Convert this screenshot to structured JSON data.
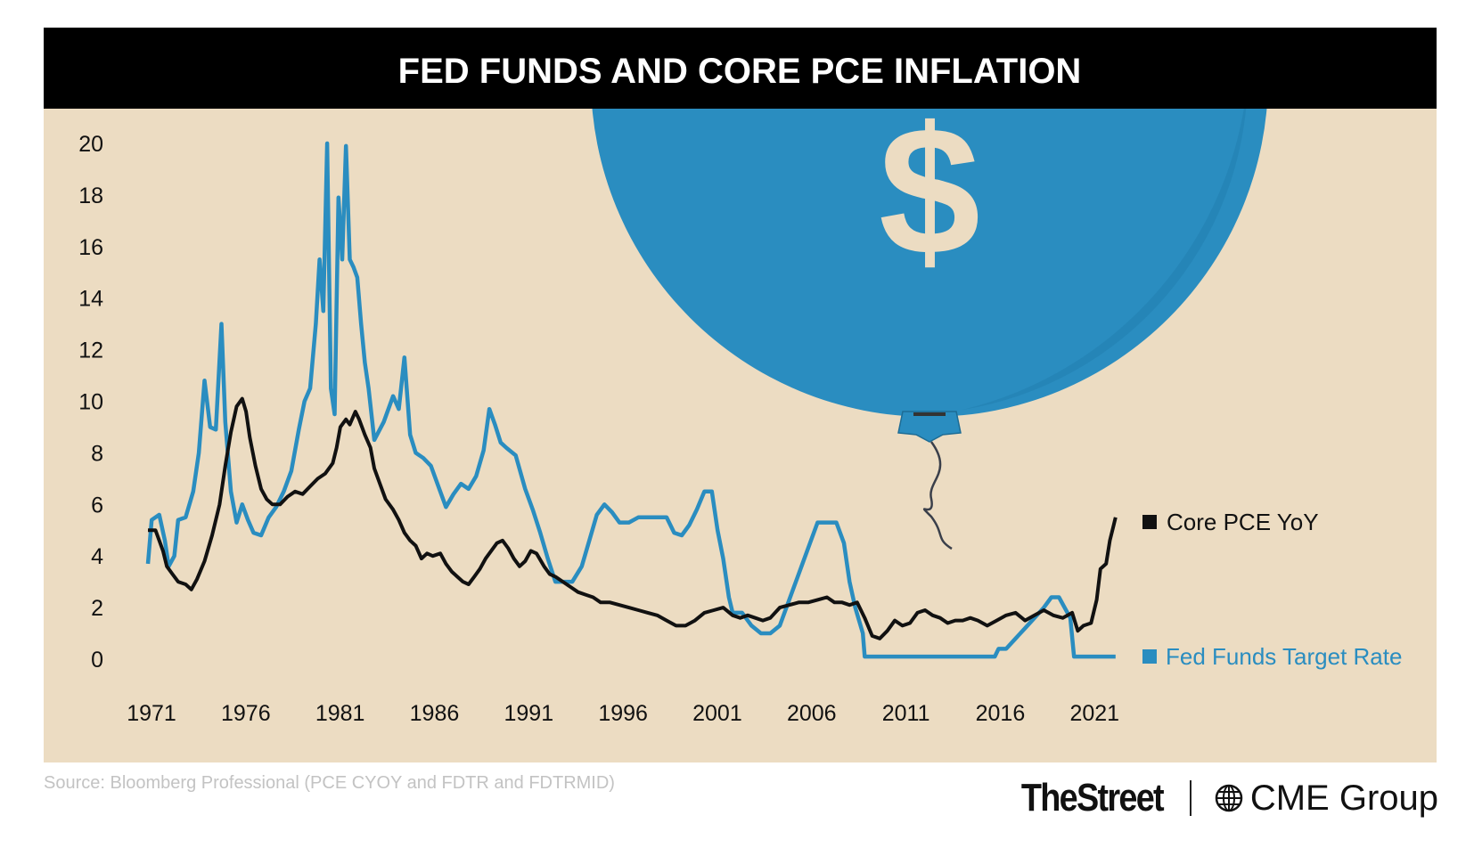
{
  "chart_data": {
    "type": "line",
    "title": "FED FUNDS AND CORE PCE INFLATION",
    "xlabel": "",
    "ylabel": "",
    "xlim": [
      1971,
      2022.5
    ],
    "ylim": [
      0,
      20
    ],
    "x_ticks": [
      1971,
      1976,
      1981,
      1986,
      1991,
      1996,
      2001,
      2006,
      2011,
      2016,
      2021
    ],
    "y_ticks": [
      0,
      2,
      4,
      6,
      8,
      10,
      12,
      14,
      16,
      18,
      20
    ],
    "grid": false,
    "legend_position": "right",
    "series": [
      {
        "name": "Core PCE YoY",
        "color": "#111111",
        "points": [
          [
            1971.0,
            5.0
          ],
          [
            1971.4,
            5.0
          ],
          [
            1971.6,
            4.6
          ],
          [
            1971.8,
            4.2
          ],
          [
            1972.0,
            3.6
          ],
          [
            1972.3,
            3.3
          ],
          [
            1972.6,
            3.0
          ],
          [
            1973.0,
            2.9
          ],
          [
            1973.3,
            2.7
          ],
          [
            1973.6,
            3.1
          ],
          [
            1974.0,
            3.8
          ],
          [
            1974.4,
            4.8
          ],
          [
            1974.8,
            6.0
          ],
          [
            1975.1,
            7.5
          ],
          [
            1975.4,
            8.8
          ],
          [
            1975.7,
            9.8
          ],
          [
            1976.0,
            10.1
          ],
          [
            1976.2,
            9.6
          ],
          [
            1976.4,
            8.6
          ],
          [
            1976.7,
            7.5
          ],
          [
            1977.0,
            6.6
          ],
          [
            1977.3,
            6.2
          ],
          [
            1977.6,
            6.0
          ],
          [
            1978.0,
            6.0
          ],
          [
            1978.4,
            6.3
          ],
          [
            1978.8,
            6.5
          ],
          [
            1979.2,
            6.4
          ],
          [
            1979.6,
            6.7
          ],
          [
            1980.0,
            7.0
          ],
          [
            1980.4,
            7.2
          ],
          [
            1980.8,
            7.6
          ],
          [
            1981.0,
            8.2
          ],
          [
            1981.2,
            9.0
          ],
          [
            1981.5,
            9.3
          ],
          [
            1981.7,
            9.1
          ],
          [
            1982.0,
            9.6
          ],
          [
            1982.2,
            9.3
          ],
          [
            1982.5,
            8.7
          ],
          [
            1982.8,
            8.2
          ],
          [
            1983.0,
            7.4
          ],
          [
            1983.3,
            6.8
          ],
          [
            1983.6,
            6.2
          ],
          [
            1984.0,
            5.8
          ],
          [
            1984.3,
            5.4
          ],
          [
            1984.6,
            4.9
          ],
          [
            1984.9,
            4.6
          ],
          [
            1985.2,
            4.4
          ],
          [
            1985.5,
            3.9
          ],
          [
            1985.8,
            4.1
          ],
          [
            1986.1,
            4.0
          ],
          [
            1986.5,
            4.1
          ],
          [
            1986.8,
            3.7
          ],
          [
            1987.1,
            3.4
          ],
          [
            1987.4,
            3.2
          ],
          [
            1987.7,
            3.0
          ],
          [
            1988.0,
            2.9
          ],
          [
            1988.3,
            3.2
          ],
          [
            1988.6,
            3.5
          ],
          [
            1988.9,
            3.9
          ],
          [
            1989.2,
            4.2
          ],
          [
            1989.5,
            4.5
          ],
          [
            1989.8,
            4.6
          ],
          [
            1990.1,
            4.3
          ],
          [
            1990.4,
            3.9
          ],
          [
            1990.7,
            3.6
          ],
          [
            1991.0,
            3.8
          ],
          [
            1991.3,
            4.2
          ],
          [
            1991.6,
            4.1
          ],
          [
            1992.0,
            3.6
          ],
          [
            1992.3,
            3.3
          ],
          [
            1992.6,
            3.2
          ],
          [
            1993.0,
            3.0
          ],
          [
            1993.4,
            2.8
          ],
          [
            1993.8,
            2.6
          ],
          [
            1994.2,
            2.5
          ],
          [
            1994.6,
            2.4
          ],
          [
            1995.0,
            2.2
          ],
          [
            1995.5,
            2.2
          ],
          [
            1996.0,
            2.1
          ],
          [
            1996.5,
            2.0
          ],
          [
            1997.0,
            1.9
          ],
          [
            1997.5,
            1.8
          ],
          [
            1998.0,
            1.7
          ],
          [
            1998.5,
            1.5
          ],
          [
            1999.0,
            1.3
          ],
          [
            1999.5,
            1.3
          ],
          [
            2000.0,
            1.5
          ],
          [
            2000.5,
            1.8
          ],
          [
            2001.0,
            1.9
          ],
          [
            2001.5,
            2.0
          ],
          [
            2002.0,
            1.7
          ],
          [
            2002.4,
            1.6
          ],
          [
            2002.8,
            1.7
          ],
          [
            2003.2,
            1.6
          ],
          [
            2003.6,
            1.5
          ],
          [
            2004.0,
            1.6
          ],
          [
            2004.5,
            2.0
          ],
          [
            2005.0,
            2.1
          ],
          [
            2005.5,
            2.2
          ],
          [
            2006.0,
            2.2
          ],
          [
            2006.5,
            2.3
          ],
          [
            2007.0,
            2.4
          ],
          [
            2007.4,
            2.2
          ],
          [
            2007.8,
            2.2
          ],
          [
            2008.2,
            2.1
          ],
          [
            2008.6,
            2.2
          ],
          [
            2009.0,
            1.6
          ],
          [
            2009.4,
            0.9
          ],
          [
            2009.8,
            0.8
          ],
          [
            2010.2,
            1.1
          ],
          [
            2010.6,
            1.5
          ],
          [
            2011.0,
            1.3
          ],
          [
            2011.4,
            1.4
          ],
          [
            2011.8,
            1.8
          ],
          [
            2012.2,
            1.9
          ],
          [
            2012.6,
            1.7
          ],
          [
            2013.0,
            1.6
          ],
          [
            2013.4,
            1.4
          ],
          [
            2013.8,
            1.5
          ],
          [
            2014.2,
            1.5
          ],
          [
            2014.6,
            1.6
          ],
          [
            2015.0,
            1.5
          ],
          [
            2015.5,
            1.3
          ],
          [
            2016.0,
            1.5
          ],
          [
            2016.5,
            1.7
          ],
          [
            2017.0,
            1.8
          ],
          [
            2017.5,
            1.5
          ],
          [
            2018.0,
            1.7
          ],
          [
            2018.5,
            1.9
          ],
          [
            2019.0,
            1.7
          ],
          [
            2019.5,
            1.6
          ],
          [
            2020.0,
            1.8
          ],
          [
            2020.3,
            1.1
          ],
          [
            2020.6,
            1.3
          ],
          [
            2021.0,
            1.4
          ],
          [
            2021.3,
            2.3
          ],
          [
            2021.5,
            3.5
          ],
          [
            2021.8,
            3.7
          ],
          [
            2022.0,
            4.6
          ],
          [
            2022.2,
            5.2
          ],
          [
            2022.3,
            5.5
          ]
        ]
      },
      {
        "name": "Fed Funds Target Rate",
        "color": "#2a8dc0",
        "points": [
          [
            1971.0,
            3.7
          ],
          [
            1971.2,
            5.4
          ],
          [
            1971.6,
            5.6
          ],
          [
            1971.9,
            4.6
          ],
          [
            1972.1,
            3.6
          ],
          [
            1972.4,
            4.0
          ],
          [
            1972.6,
            5.4
          ],
          [
            1973.0,
            5.5
          ],
          [
            1973.4,
            6.5
          ],
          [
            1973.7,
            8.0
          ],
          [
            1974.0,
            10.8
          ],
          [
            1974.3,
            9.0
          ],
          [
            1974.6,
            8.9
          ],
          [
            1974.9,
            13.0
          ],
          [
            1975.1,
            9.2
          ],
          [
            1975.4,
            6.5
          ],
          [
            1975.7,
            5.3
          ],
          [
            1976.0,
            6.0
          ],
          [
            1976.3,
            5.4
          ],
          [
            1976.6,
            4.9
          ],
          [
            1977.0,
            4.8
          ],
          [
            1977.4,
            5.5
          ],
          [
            1977.8,
            5.9
          ],
          [
            1978.2,
            6.5
          ],
          [
            1978.6,
            7.3
          ],
          [
            1979.0,
            8.9
          ],
          [
            1979.3,
            10.0
          ],
          [
            1979.6,
            10.5
          ],
          [
            1979.9,
            13.0
          ],
          [
            1980.1,
            15.5
          ],
          [
            1980.3,
            13.5
          ],
          [
            1980.5,
            20.0
          ],
          [
            1980.7,
            10.5
          ],
          [
            1980.9,
            9.5
          ],
          [
            1981.1,
            17.9
          ],
          [
            1981.3,
            15.5
          ],
          [
            1981.5,
            19.9
          ],
          [
            1981.7,
            15.5
          ],
          [
            1981.9,
            15.2
          ],
          [
            1982.1,
            14.8
          ],
          [
            1982.3,
            13.0
          ],
          [
            1982.5,
            11.5
          ],
          [
            1982.7,
            10.5
          ],
          [
            1983.0,
            8.5
          ],
          [
            1983.5,
            9.2
          ],
          [
            1984.0,
            10.2
          ],
          [
            1984.3,
            9.7
          ],
          [
            1984.6,
            11.7
          ],
          [
            1984.9,
            8.7
          ],
          [
            1985.2,
            8.0
          ],
          [
            1985.6,
            7.8
          ],
          [
            1986.0,
            7.5
          ],
          [
            1986.4,
            6.7
          ],
          [
            1986.8,
            5.9
          ],
          [
            1987.2,
            6.4
          ],
          [
            1987.6,
            6.8
          ],
          [
            1988.0,
            6.6
          ],
          [
            1988.4,
            7.1
          ],
          [
            1988.8,
            8.1
          ],
          [
            1989.1,
            9.7
          ],
          [
            1989.4,
            9.1
          ],
          [
            1989.7,
            8.4
          ],
          [
            1990.0,
            8.2
          ],
          [
            1990.5,
            7.9
          ],
          [
            1991.0,
            6.6
          ],
          [
            1991.4,
            5.8
          ],
          [
            1991.8,
            4.9
          ],
          [
            1992.2,
            3.9
          ],
          [
            1992.6,
            3.0
          ],
          [
            1993.0,
            3.0
          ],
          [
            1993.5,
            3.0
          ],
          [
            1994.0,
            3.6
          ],
          [
            1994.4,
            4.6
          ],
          [
            1994.8,
            5.6
          ],
          [
            1995.2,
            6.0
          ],
          [
            1995.6,
            5.7
          ],
          [
            1996.0,
            5.3
          ],
          [
            1996.5,
            5.3
          ],
          [
            1997.0,
            5.5
          ],
          [
            1997.5,
            5.5
          ],
          [
            1998.0,
            5.5
          ],
          [
            1998.5,
            5.5
          ],
          [
            1998.9,
            4.9
          ],
          [
            1999.3,
            4.8
          ],
          [
            1999.7,
            5.2
          ],
          [
            2000.1,
            5.8
          ],
          [
            2000.5,
            6.5
          ],
          [
            2000.9,
            6.5
          ],
          [
            2001.2,
            5.0
          ],
          [
            2001.5,
            3.9
          ],
          [
            2001.8,
            2.4
          ],
          [
            2002.0,
            1.8
          ],
          [
            2002.5,
            1.8
          ],
          [
            2003.0,
            1.3
          ],
          [
            2003.5,
            1.0
          ],
          [
            2004.0,
            1.0
          ],
          [
            2004.5,
            1.3
          ],
          [
            2005.0,
            2.3
          ],
          [
            2005.5,
            3.3
          ],
          [
            2006.0,
            4.3
          ],
          [
            2006.5,
            5.3
          ],
          [
            2007.0,
            5.3
          ],
          [
            2007.5,
            5.3
          ],
          [
            2007.9,
            4.5
          ],
          [
            2008.2,
            3.0
          ],
          [
            2008.5,
            2.0
          ],
          [
            2008.9,
            1.0
          ],
          [
            2009.0,
            0.1
          ],
          [
            2010.0,
            0.1
          ],
          [
            2012.0,
            0.1
          ],
          [
            2014.0,
            0.1
          ],
          [
            2015.9,
            0.1
          ],
          [
            2016.1,
            0.4
          ],
          [
            2016.5,
            0.4
          ],
          [
            2017.0,
            0.8
          ],
          [
            2017.5,
            1.2
          ],
          [
            2018.0,
            1.6
          ],
          [
            2018.5,
            2.0
          ],
          [
            2018.9,
            2.4
          ],
          [
            2019.3,
            2.4
          ],
          [
            2019.6,
            2.0
          ],
          [
            2019.9,
            1.6
          ],
          [
            2020.1,
            0.1
          ],
          [
            2021.0,
            0.1
          ],
          [
            2022.3,
            0.1
          ]
        ]
      }
    ],
    "legend": [
      "Core PCE YoY",
      "Fed Funds Target Rate"
    ],
    "source": "Source: Bloomberg Professional (PCE CYOY and FDTR and FDTRMID)"
  },
  "branding": {
    "thestreet": "TheStreet",
    "cme": "CME Group"
  },
  "colors": {
    "background": "#ecdcc2",
    "title_bar": "#000000",
    "balloon": "#2a8dc0",
    "dollar": "#ecdcc2"
  }
}
